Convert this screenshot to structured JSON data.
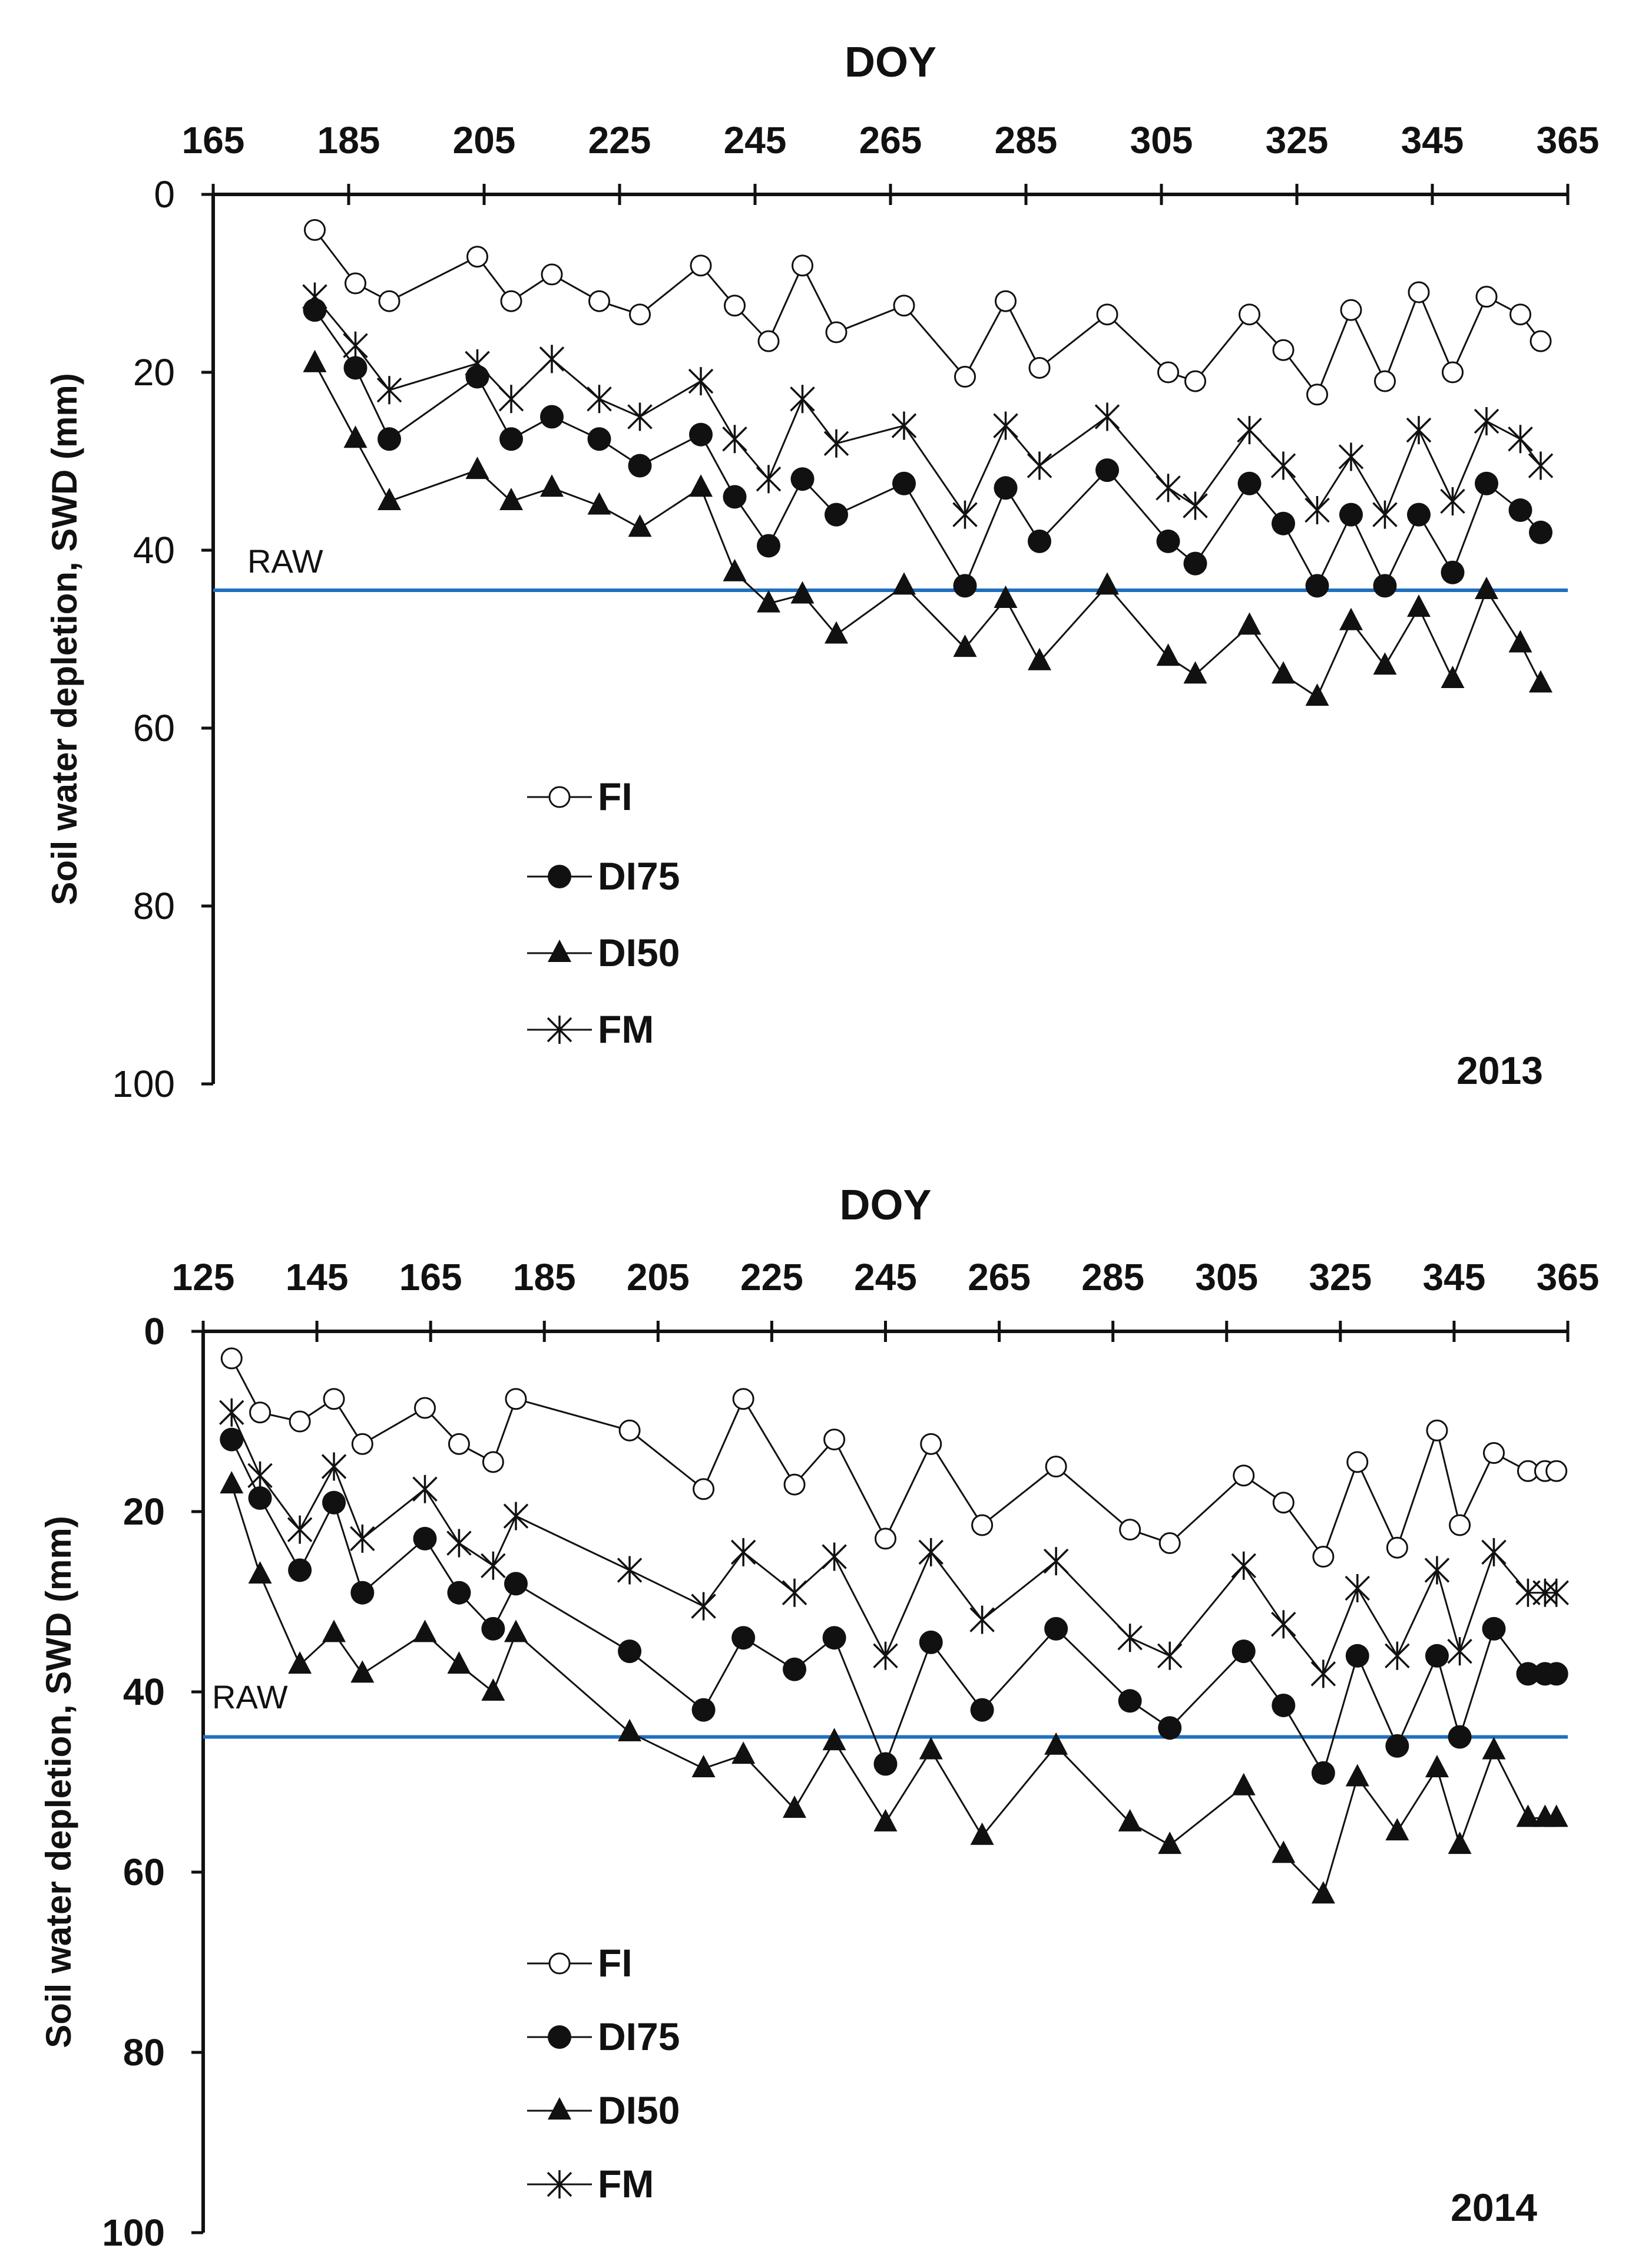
{
  "colors": {
    "raw_line": "#1f6fbf",
    "series": "#111111"
  },
  "legend_items": [
    {
      "key": "FI",
      "label": "FI",
      "marker": "open-circle"
    },
    {
      "key": "DI75",
      "label": "DI75",
      "marker": "filled-circle"
    },
    {
      "key": "DI50",
      "label": "DI50",
      "marker": "filled-triangle"
    },
    {
      "key": "FM",
      "label": "FM",
      "marker": "asterisk"
    }
  ],
  "chart_data": [
    {
      "type": "line",
      "year_label": "2013",
      "xlabel": "DOY",
      "ylabel": "Soil water depletion, SWD (mm)",
      "xlim": [
        165,
        365
      ],
      "xticks": [
        165,
        185,
        205,
        225,
        245,
        265,
        285,
        305,
        325,
        345,
        365
      ],
      "ylim": [
        0,
        100
      ],
      "yticks": [
        0,
        20,
        40,
        60,
        80,
        100
      ],
      "y_inverted": true,
      "y_tick_bold": false,
      "raw": {
        "label": "RAW",
        "value": 44.5
      },
      "series": [
        {
          "name": "FI",
          "marker": "open-circle",
          "x": [
            180,
            186,
            191,
            204,
            209,
            215,
            222,
            228,
            237,
            242,
            247,
            252,
            257,
            267,
            276,
            282,
            287,
            297,
            306,
            310,
            318,
            323,
            328,
            333,
            338,
            343,
            348,
            353,
            358,
            361
          ],
          "y": [
            4,
            10,
            12,
            7,
            12,
            9,
            12,
            13.5,
            8,
            12.5,
            16.5,
            8,
            15.5,
            12.5,
            20.5,
            12,
            19.5,
            13.5,
            20,
            21,
            13.5,
            17.5,
            22.5,
            13,
            21,
            11,
            20,
            11.5,
            13.5,
            16.5
          ]
        },
        {
          "name": "DI75",
          "marker": "filled-circle",
          "x": [
            180,
            186,
            191,
            204,
            209,
            215,
            222,
            228,
            237,
            242,
            247,
            252,
            257,
            267,
            276,
            282,
            287,
            297,
            306,
            310,
            318,
            323,
            328,
            333,
            338,
            343,
            348,
            353,
            358,
            361
          ],
          "y": [
            13,
            19.5,
            27.5,
            20.5,
            27.5,
            25,
            27.5,
            30.5,
            27,
            34,
            39.5,
            32,
            36,
            32.5,
            44,
            33,
            39,
            31,
            39,
            41.5,
            32.5,
            37,
            44,
            36,
            44,
            36,
            42.5,
            32.5,
            35.5,
            38
          ]
        },
        {
          "name": "DI50",
          "marker": "filled-triangle",
          "x": [
            180,
            186,
            191,
            204,
            209,
            215,
            222,
            228,
            237,
            242,
            247,
            252,
            257,
            267,
            276,
            282,
            287,
            297,
            306,
            310,
            318,
            323,
            328,
            333,
            338,
            343,
            348,
            353,
            358,
            361
          ],
          "y": [
            19,
            27.5,
            34.5,
            31,
            34.5,
            33,
            35,
            37.5,
            33,
            42.5,
            46,
            45,
            49.5,
            44,
            51,
            45.5,
            52.5,
            44,
            52,
            54,
            48.5,
            54,
            56.5,
            48,
            53,
            46.5,
            54.5,
            44.5,
            50.5,
            55
          ]
        },
        {
          "name": "FM",
          "marker": "asterisk",
          "x": [
            180,
            186,
            191,
            204,
            209,
            215,
            222,
            228,
            237,
            242,
            247,
            252,
            257,
            267,
            276,
            282,
            287,
            297,
            306,
            310,
            318,
            323,
            328,
            333,
            338,
            343,
            348,
            353,
            358,
            361
          ],
          "y": [
            11.5,
            17,
            22,
            19,
            23,
            18.5,
            23,
            25,
            21,
            27.5,
            32,
            23,
            28,
            26,
            36,
            26,
            30.5,
            25,
            33,
            35,
            26.5,
            30.5,
            35.5,
            29.5,
            36,
            26.5,
            34.5,
            25.5,
            27.5,
            30.5
          ]
        }
      ]
    },
    {
      "type": "line",
      "year_label": "2014",
      "xlabel": "DOY",
      "ylabel": "Soil water depletion, SWD (mm)",
      "xlim": [
        125,
        365
      ],
      "xticks": [
        125,
        145,
        165,
        185,
        205,
        225,
        245,
        265,
        285,
        305,
        325,
        345,
        365
      ],
      "ylim": [
        0,
        100
      ],
      "yticks": [
        0,
        20,
        40,
        60,
        80,
        100
      ],
      "y_inverted": true,
      "y_tick_bold": true,
      "raw": {
        "label": "RAW",
        "value": 45
      },
      "series": [
        {
          "name": "FI",
          "marker": "open-circle",
          "x": [
            130,
            135,
            142,
            148,
            153,
            164,
            170,
            176,
            180,
            200,
            213,
            220,
            229,
            236,
            245,
            253,
            262,
            275,
            288,
            295,
            308,
            315,
            322,
            328,
            335,
            342,
            346,
            352,
            358,
            361,
            363
          ],
          "y": [
            3,
            9,
            10,
            7.5,
            12.5,
            8.5,
            12.5,
            14.5,
            7.5,
            11,
            17.5,
            7.5,
            17,
            12,
            23,
            12.5,
            21.5,
            15,
            22,
            23.5,
            16,
            19,
            25,
            14.5,
            24,
            11,
            21.5,
            13.5,
            15.5,
            15.5,
            15.5
          ]
        },
        {
          "name": "DI75",
          "marker": "filled-circle",
          "x": [
            130,
            135,
            142,
            148,
            153,
            164,
            170,
            176,
            180,
            200,
            213,
            220,
            229,
            236,
            245,
            253,
            262,
            275,
            288,
            295,
            308,
            315,
            322,
            328,
            335,
            342,
            346,
            352,
            358,
            361,
            363
          ],
          "y": [
            12,
            18.5,
            26.5,
            19,
            29,
            23,
            29,
            33,
            28,
            35.5,
            42,
            34,
            37.5,
            34,
            48,
            34.5,
            42,
            33,
            41,
            44,
            35.5,
            41.5,
            49,
            36,
            46,
            36,
            45,
            33,
            38,
            38,
            38
          ]
        },
        {
          "name": "DI50",
          "marker": "filled-triangle",
          "x": [
            130,
            135,
            142,
            148,
            153,
            164,
            170,
            176,
            180,
            200,
            213,
            220,
            229,
            236,
            245,
            253,
            262,
            275,
            288,
            295,
            308,
            315,
            322,
            328,
            335,
            342,
            346,
            352,
            358,
            361,
            363
          ],
          "y": [
            17,
            27,
            37,
            33.5,
            38,
            33.5,
            37,
            40,
            33.5,
            44.5,
            48.5,
            47,
            53,
            45.5,
            54.5,
            46.5,
            56,
            46,
            54.5,
            57,
            50.5,
            58,
            62.5,
            49.5,
            55.5,
            48.5,
            57,
            46.5,
            54,
            54,
            54
          ]
        },
        {
          "name": "FM",
          "marker": "asterisk",
          "x": [
            130,
            135,
            142,
            148,
            153,
            164,
            170,
            176,
            180,
            200,
            213,
            220,
            229,
            236,
            245,
            253,
            262,
            275,
            288,
            295,
            308,
            315,
            322,
            328,
            335,
            342,
            346,
            352,
            358,
            361,
            363
          ],
          "y": [
            9,
            16,
            22,
            15,
            23,
            17.5,
            23.5,
            26,
            20.5,
            26.5,
            30.5,
            24.5,
            29,
            25,
            36,
            24.5,
            32,
            25.5,
            34,
            36,
            26,
            32.5,
            38,
            28.5,
            36,
            26.5,
            35.5,
            24.5,
            29,
            29,
            29
          ]
        }
      ]
    }
  ]
}
